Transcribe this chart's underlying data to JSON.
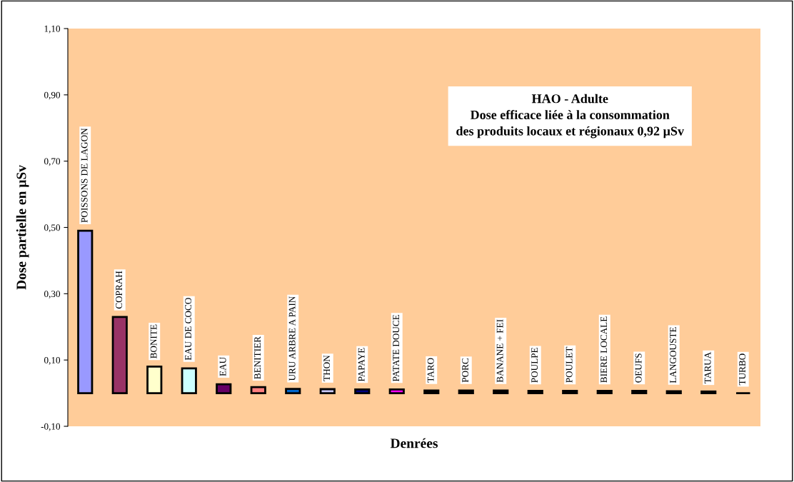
{
  "chart_data": {
    "type": "bar",
    "title": "HAO - Adulte\nDose efficace liée à la consommation\ndes produits locaux et régionaux 0,92 µSv",
    "xlabel": "Denrées",
    "ylabel": "Dose partielle en µSv",
    "categories": [
      "POISSONS DE LAGON",
      "COPRAH",
      "BONITE",
      "EAU DE COCO",
      "EAU",
      "BENITIER",
      "URU ARBRE A PAIN",
      "THON",
      "PAPAYE",
      "PATATE DOUCE",
      "TARO",
      "PORC",
      "BANANE + FEI",
      "POULPE",
      "POULET",
      "BIERE LOCALE",
      "OEUFS",
      "LANGOUSTE",
      "TARUA",
      "TURBO"
    ],
    "values": [
      0.49,
      0.23,
      0.08,
      0.075,
      0.027,
      0.018,
      0.013,
      0.012,
      0.011,
      0.011,
      0.008,
      0.008,
      0.008,
      0.007,
      0.007,
      0.007,
      0.007,
      0.006,
      0.005,
      0
    ],
    "colors": [
      "#9999ff",
      "#993366",
      "#ffffcc",
      "#ccffff",
      "#660066",
      "#ff8080",
      "#0066cc",
      "#ccccff",
      "#000080",
      "#ff00ff",
      "#000000",
      "#000000",
      "#000000",
      "#000000",
      "#000000",
      "#000000",
      "#000000",
      "#000000",
      "#000000",
      "#000000"
    ],
    "ylim": [
      -0.1,
      1.1
    ],
    "yticks": [
      {
        "value": -0.1,
        "label": "-0,10"
      },
      {
        "value": 0.1,
        "label": "0,10"
      },
      {
        "value": 0.3,
        "label": "0,30"
      },
      {
        "value": 0.5,
        "label": "0,50"
      },
      {
        "value": 0.7,
        "label": "0,70"
      },
      {
        "value": 0.9,
        "label": "0,90"
      },
      {
        "value": 1.1,
        "label": "1,10"
      }
    ],
    "tick_labels": "y",
    "grid": false
  }
}
